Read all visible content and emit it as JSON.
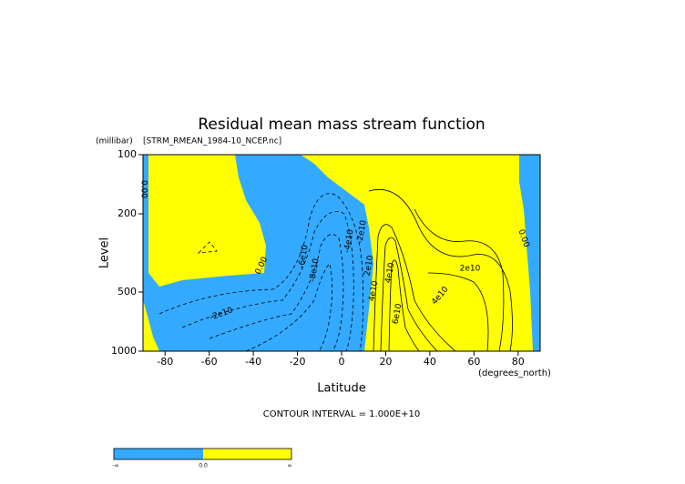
{
  "chart_data": {
    "type": "contour",
    "title": "Residual mean mass stream function",
    "subtitle": "[STRM_RMEAN_1984-10_NCEP.nc]",
    "ylabel": "Level",
    "yunit": "(millibar)",
    "xlabel": "Latitude",
    "xunit": "(degrees_north)",
    "xlim": [
      -90,
      90
    ],
    "xticks": [
      -80,
      -60,
      -40,
      -20,
      0,
      20,
      40,
      60,
      80
    ],
    "ylim": [
      1000,
      100
    ],
    "yticks": [
      100,
      200,
      500,
      1000
    ],
    "log_y": true,
    "negative_color": "#33aaff",
    "positive_color": "#ffff00",
    "contour_labels": [
      "0.00",
      "0.00",
      "-2e10",
      "-6e10",
      "-8e10",
      "-4e10",
      "-2e10",
      "2e10",
      "4e10",
      "4e10",
      "6e10",
      "4e10",
      "2e10",
      "0.00"
    ],
    "footnote": "CONTOUR INTERVAL = 1.000E+10",
    "colorbar": {
      "labels": [
        "-∞",
        "0.0",
        "∞"
      ]
    }
  }
}
